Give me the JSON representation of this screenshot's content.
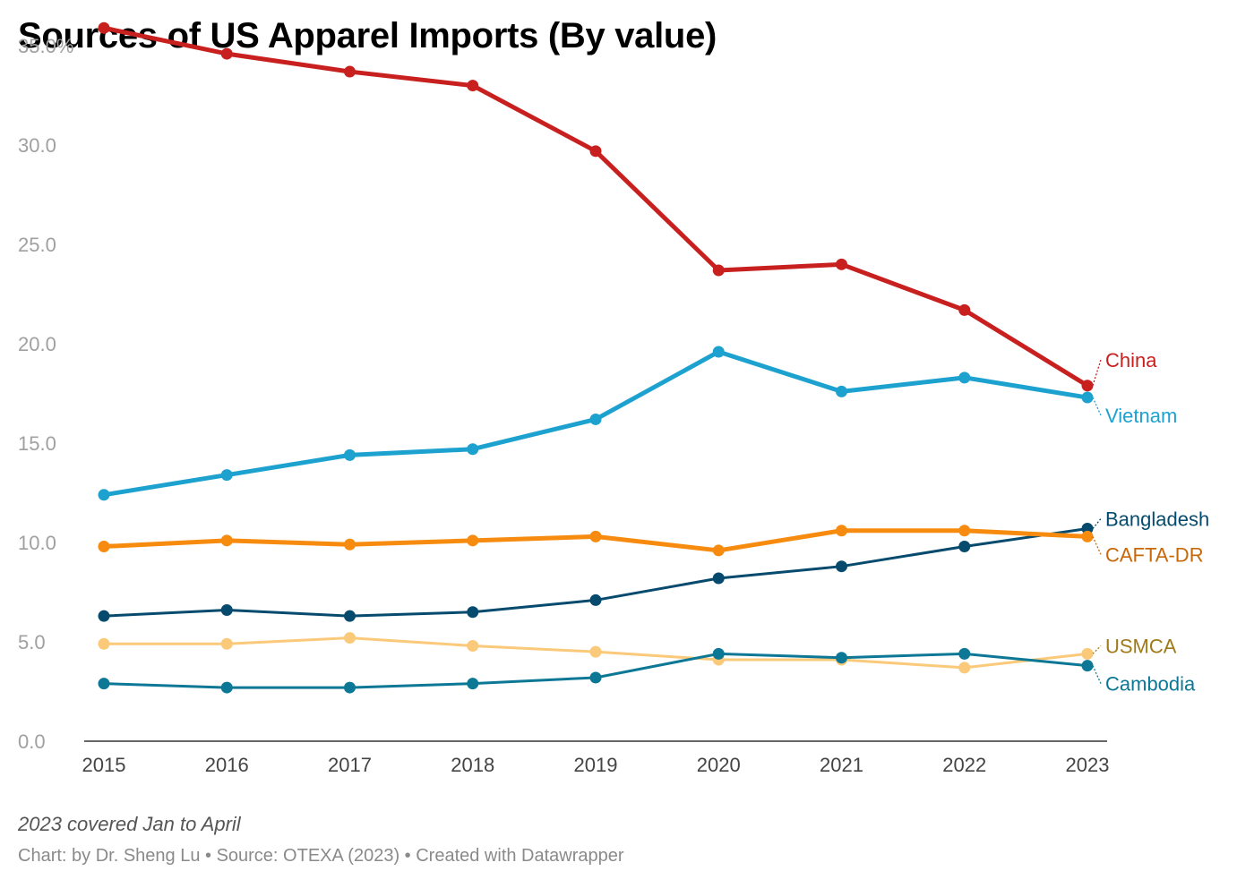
{
  "chart_data": {
    "type": "line",
    "title": "Sources of US Apparel Imports (By value)",
    "x": [
      "2015",
      "2016",
      "2017",
      "2018",
      "2019",
      "2020",
      "2021",
      "2022",
      "2023"
    ],
    "ylim": [
      0,
      35
    ],
    "y_ticks": [
      0,
      5,
      10,
      15,
      20,
      25,
      30,
      35
    ],
    "y_tick_labels": [
      "0.0",
      "5.0",
      "10.0",
      "15.0",
      "20.0",
      "25.0",
      "30.0",
      "35.0%"
    ],
    "grid": false,
    "legend": "direct labels at right",
    "series": [
      {
        "name": "China",
        "color": "#c8201f",
        "width": 5,
        "values": [
          35.9,
          34.6,
          33.7,
          33.0,
          29.7,
          23.7,
          24.0,
          21.7,
          17.9
        ]
      },
      {
        "name": "Vietnam",
        "color": "#1da2d0",
        "width": 5,
        "values": [
          12.4,
          13.4,
          14.4,
          14.7,
          16.2,
          19.6,
          17.6,
          18.3,
          17.3
        ]
      },
      {
        "name": "Bangladesh",
        "color": "#064a6e",
        "width": 3,
        "values": [
          6.3,
          6.6,
          6.3,
          6.5,
          7.1,
          8.2,
          8.8,
          9.8,
          10.7
        ]
      },
      {
        "name": "CAFTA-DR",
        "color": "#f78b0f",
        "width": 5,
        "values": [
          9.8,
          10.1,
          9.9,
          10.1,
          10.3,
          9.6,
          10.6,
          10.6,
          10.3
        ]
      },
      {
        "name": "USMCA",
        "color": "#fac97a",
        "width": 3,
        "values": [
          4.9,
          4.9,
          5.2,
          4.8,
          4.5,
          4.1,
          4.1,
          3.7,
          4.4
        ]
      },
      {
        "name": "Cambodia",
        "color": "#0d7896",
        "width": 3,
        "values": [
          2.9,
          2.7,
          2.7,
          2.9,
          3.2,
          4.4,
          4.2,
          4.4,
          3.8
        ]
      }
    ],
    "labels": [
      {
        "name": "China",
        "text": "China",
        "color": "#c8201f",
        "value": 19.2
      },
      {
        "name": "Vietnam",
        "text": "Vietnam",
        "color": "#1da2d0",
        "value": 16.4
      },
      {
        "name": "Bangladesh",
        "text": "Bangladesh",
        "color": "#064a6e",
        "value": 11.2
      },
      {
        "name": "CAFTA-DR",
        "text": "CAFTA-DR",
        "color": "#c7680a",
        "value": 9.4
      },
      {
        "name": "USMCA",
        "text": "USMCA",
        "color": "#a07a19",
        "value": 4.8
      },
      {
        "name": "Cambodia",
        "text": "Cambodia",
        "color": "#0d7896",
        "value": 2.9
      }
    ],
    "note": "2023 covered Jan to April",
    "credit": "Chart: by Dr. Sheng Lu • Source: OTEXA (2023) • Created with Datawrapper"
  }
}
